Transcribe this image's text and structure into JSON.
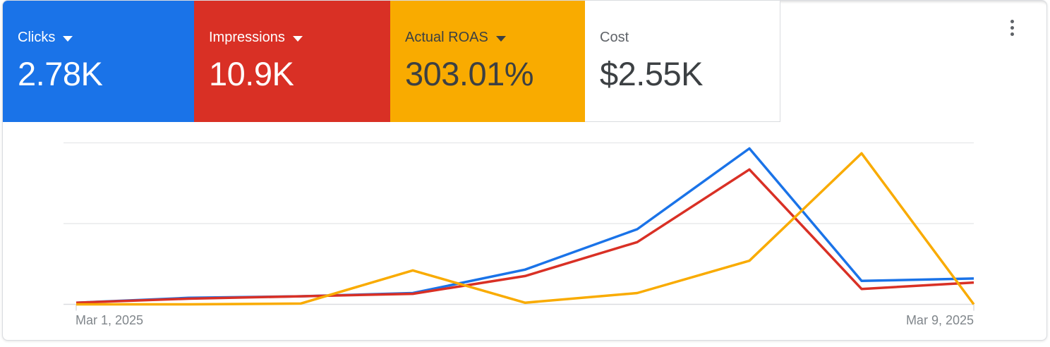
{
  "card": {
    "metrics": [
      {
        "id": "clicks",
        "label": "Clicks",
        "value": "2.78K",
        "bg": "#1a73e8",
        "label_color": "#ffffff",
        "value_color": "#ffffff",
        "has_dropdown": true
      },
      {
        "id": "impressions",
        "label": "Impressions",
        "value": "10.9K",
        "bg": "#d93025",
        "label_color": "#ffffff",
        "value_color": "#ffffff",
        "has_dropdown": true
      },
      {
        "id": "actual-roas",
        "label": "Actual ROAS",
        "value": "303.01%",
        "bg": "#f9ab00",
        "label_color": "#3c4043",
        "value_color": "#3c4043",
        "has_dropdown": true
      },
      {
        "id": "cost",
        "label": "Cost",
        "value": "$2.55K",
        "bg": "#ffffff",
        "label_color": "#5f6368",
        "value_color": "#3c4043",
        "has_dropdown": false
      }
    ],
    "more_options_icon": "kebab-menu-vertical-3-dots"
  },
  "chart_data": {
    "type": "line",
    "title": "",
    "x_categories": [
      "Mar 1, 2025",
      "Mar 2, 2025",
      "Mar 3, 2025",
      "Mar 4, 2025",
      "Mar 5, 2025",
      "Mar 6, 2025",
      "Mar 7, 2025",
      "Mar 8, 2025",
      "Mar 9, 2025"
    ],
    "x_axis_visible_tick_labels": [
      "Mar 1, 2025",
      "Mar 9, 2025"
    ],
    "y_axis": {
      "tick_labels_visible": false,
      "unit": "relative gridline units (axis unlabeled; 1.0 = one gridline spacing)",
      "ylim": [
        0,
        2
      ],
      "gridlines_at": [
        1,
        2
      ],
      "gridline_color": "#e9eaec",
      "axis_color": "#dadce0"
    },
    "legend": "none (series colors match metric tile colors)",
    "series": [
      {
        "name": "Clicks",
        "color": "#1a73e8",
        "values": [
          0.02,
          0.08,
          0.1,
          0.14,
          0.43,
          0.93,
          1.93,
          0.29,
          0.32
        ]
      },
      {
        "name": "Impressions",
        "color": "#d93025",
        "values": [
          0.02,
          0.07,
          0.1,
          0.13,
          0.35,
          0.77,
          1.67,
          0.19,
          0.27
        ]
      },
      {
        "name": "Actual ROAS",
        "color": "#f9ab00",
        "values": [
          0.0,
          0.0,
          0.01,
          0.42,
          0.02,
          0.14,
          0.54,
          1.87,
          0.0
        ]
      }
    ]
  }
}
